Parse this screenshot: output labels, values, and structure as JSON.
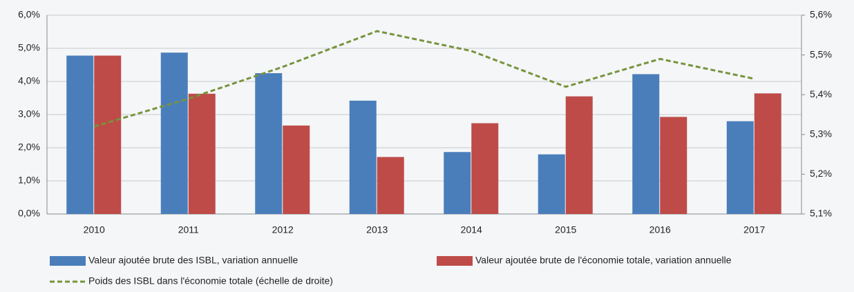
{
  "chart_data": {
    "type": "bar",
    "categories": [
      "2010",
      "2011",
      "2012",
      "2013",
      "2014",
      "2015",
      "2016",
      "2017"
    ],
    "series": [
      {
        "name": "Valeur ajoutée brute des ISBL, variation annuelle",
        "color": "#4a7ebb",
        "values": [
          4.78,
          4.87,
          4.25,
          3.42,
          1.87,
          1.8,
          4.22,
          2.8
        ]
      },
      {
        "name": "Valeur ajoutée brute de l'économie totale, variation annuelle",
        "color": "#be4b48",
        "values": [
          4.78,
          3.63,
          2.67,
          1.72,
          2.74,
          3.55,
          2.93,
          3.64
        ]
      },
      {
        "name": "Poids des ISBL dans l'économie totale (échelle de droite)",
        "color": "#77933c",
        "type": "line",
        "axis": "y2",
        "values": [
          5.32,
          5.39,
          5.47,
          5.56,
          5.51,
          5.42,
          5.49,
          5.44
        ]
      }
    ],
    "ylim": [
      0,
      6
    ],
    "yticks": [
      {
        "value": 0,
        "label": "0,0%"
      },
      {
        "value": 1,
        "label": "1,0%"
      },
      {
        "value": 2,
        "label": "2,0%"
      },
      {
        "value": 3,
        "label": "3,0%"
      },
      {
        "value": 4,
        "label": "4,0%"
      },
      {
        "value": 5,
        "label": "5,0%"
      },
      {
        "value": 6,
        "label": "6,0%"
      }
    ],
    "y2lim": [
      5.1,
      5.6
    ],
    "y2ticks": [
      {
        "value": 5.1,
        "label": "5,1%"
      },
      {
        "value": 5.2,
        "label": "5,2%"
      },
      {
        "value": 5.3,
        "label": "5,3%"
      },
      {
        "value": 5.4,
        "label": "5,4%"
      },
      {
        "value": 5.5,
        "label": "5,5%"
      },
      {
        "value": 5.6,
        "label": "5,6%"
      }
    ],
    "grid": true
  }
}
